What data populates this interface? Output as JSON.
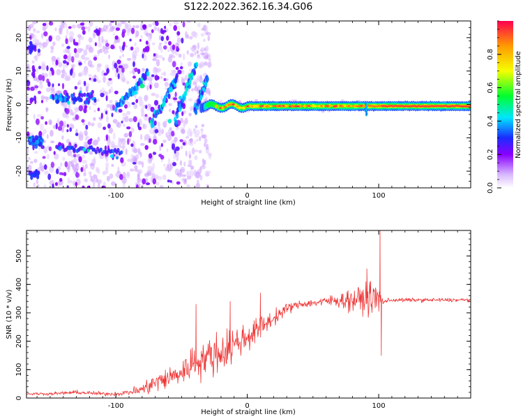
{
  "figure": {
    "title": "S122.2022.362.16.34.G06"
  },
  "chart_data": [
    {
      "type": "heatmap",
      "xlabel": "Height of straight line (km)",
      "ylabel": "Frequency (Hz)",
      "xlim": [
        -168,
        170
      ],
      "ylim": [
        -25,
        25
      ],
      "x_ticks": [
        -100,
        0,
        100
      ],
      "y_ticks": [
        -20,
        -10,
        0,
        10,
        20
      ],
      "colorbar": {
        "label": "Normalized spectral amplitude",
        "range": [
          0,
          1
        ],
        "ticks": [
          "0.0",
          "0.2",
          "0.4",
          "0.6",
          "0.8"
        ],
        "colors": [
          "#ffffff",
          "#8a00ff",
          "#1a2cff",
          "#00e5ff",
          "#00ff2e",
          "#f5ff00",
          "#ff9a00",
          "#ff0040"
        ]
      },
      "features": [
        {
          "name": "stable_line",
          "x_range": [
            -30,
            170
          ],
          "frequency_hz": -0.5,
          "amplitude": 0.95
        },
        {
          "name": "lower_band",
          "x_range": [
            -145,
            -95
          ],
          "frequency_hz": -14,
          "amplitude": 0.35
        },
        {
          "name": "diagonal_streaks",
          "x_range": [
            -110,
            -35
          ],
          "frequency_hz_range": [
            -8,
            14
          ],
          "amplitude": 0.45
        }
      ]
    },
    {
      "type": "line",
      "xlabel": "Height of straight line (km)",
      "ylabel": "SNR (10 * v/v)",
      "xlim": [
        -168,
        170
      ],
      "ylim": [
        0,
        590
      ],
      "x_ticks": [
        -100,
        0,
        100
      ],
      "y_ticks": [
        0,
        100,
        200,
        300,
        400,
        500
      ],
      "color": "#ee3333",
      "series": [
        {
          "x": [
            -168,
            -150,
            -130,
            -110,
            -100,
            -90,
            -80,
            -70,
            -60,
            -50,
            -40,
            -30,
            -20,
            -10,
            0,
            10,
            20,
            30,
            40,
            50,
            60,
            70,
            80,
            90,
            100,
            103,
            110,
            130,
            150,
            170
          ],
          "values": [
            15,
            15,
            20,
            15,
            15,
            20,
            30,
            55,
            70,
            90,
            130,
            145,
            160,
            190,
            215,
            250,
            280,
            315,
            330,
            335,
            340,
            345,
            345,
            350,
            350,
            340,
            345,
            345,
            345,
            345
          ],
          "noise": [
            5,
            6,
            8,
            8,
            8,
            12,
            25,
            40,
            45,
            50,
            70,
            80,
            80,
            70,
            60,
            45,
            30,
            22,
            15,
            15,
            20,
            30,
            45,
            60,
            70,
            12,
            8,
            8,
            8,
            8
          ],
          "spikes": [
            {
              "x": -39,
              "y": 330
            },
            {
              "x": -13,
              "y": 340
            },
            {
              "x": 10,
              "y": 370
            },
            {
              "x": 91,
              "y": 455
            },
            {
              "x": 101,
              "y": 590
            },
            {
              "x": 102,
              "y": 150
            }
          ]
        }
      ]
    }
  ]
}
